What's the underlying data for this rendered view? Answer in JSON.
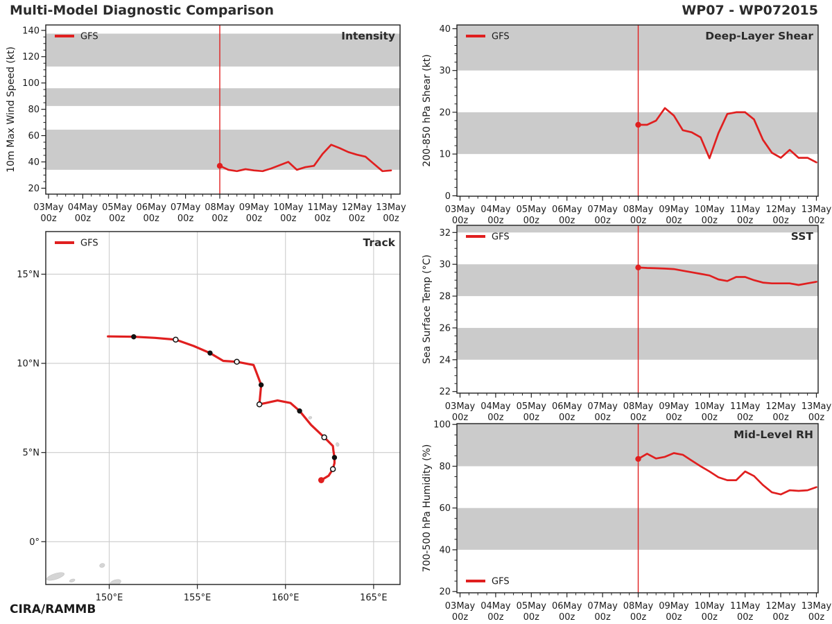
{
  "header": {
    "title": "Multi-Model Diagnostic Comparison",
    "storm_id": "WP07 - WP072015"
  },
  "footer": {
    "credit": "CIRA/RAMMB"
  },
  "colors": {
    "line": "#e01f1f",
    "band": "#cbcbcb",
    "grid": "#cccccc",
    "land": "#d5d5d5",
    "land_edge": "#c3c3c3",
    "spine": "#1f1f1f",
    "text": "#1a1a1a",
    "title": "#2b2b2b"
  },
  "time_axis": {
    "days": [
      "03May",
      "04May",
      "05May",
      "06May",
      "07May",
      "08May",
      "09May",
      "10May",
      "11May",
      "12May",
      "13May"
    ],
    "sub_label": "00z"
  },
  "chart_data": [
    {
      "key": "intensity",
      "type": "line",
      "title": "Intensity",
      "ylabel": "10m Max Wind Speed (kt)",
      "ylim": [
        15.5,
        144.1
      ],
      "yticks": [
        20,
        40,
        60,
        80,
        100,
        120,
        140
      ],
      "yminor": 5,
      "bands": [
        [
          34,
          64.5
        ],
        [
          82.5,
          96
        ],
        [
          112.5,
          137.5
        ]
      ],
      "vline_t": 120,
      "legend_pos": "top-left",
      "series": [
        {
          "name": "GFS",
          "t0": 120,
          "dt": 6,
          "values": [
            37,
            34,
            33,
            34.5,
            33.5,
            33,
            35,
            37.5,
            40,
            34,
            36,
            37,
            46,
            53,
            50.5,
            47.5,
            45.5,
            44,
            38.5,
            33,
            33.5
          ]
        }
      ]
    },
    {
      "key": "shear",
      "type": "line",
      "title": "Deep-Layer Shear",
      "ylabel": "200-850 hPa Shear (kt)",
      "ylim": [
        -0.1,
        40.9
      ],
      "yticks": [
        0,
        10,
        20,
        30,
        40
      ],
      "yminor": 2,
      "bands": [
        [
          10,
          20
        ],
        [
          30,
          40.9
        ]
      ],
      "vline_t": 120,
      "legend_pos": "top-left",
      "series": [
        {
          "name": "GFS",
          "t0": 120,
          "dt": 6,
          "values": [
            17,
            17,
            18,
            21,
            19.2,
            15.7,
            15.2,
            14,
            9,
            15,
            19.6,
            20,
            20,
            18.3,
            13.4,
            10.3,
            9.1,
            11,
            9.1,
            9.1,
            8
          ]
        }
      ]
    },
    {
      "key": "sst",
      "type": "line",
      "title": "SST",
      "ylabel": "Sea Surface Temp (°C)",
      "ylim": [
        21.9,
        32.45
      ],
      "yticks": [
        22,
        24,
        26,
        28,
        30,
        32
      ],
      "yminor": 0.5,
      "bands": [
        [
          24,
          26
        ],
        [
          28,
          30
        ],
        [
          32,
          32.45
        ]
      ],
      "vline_t": 120,
      "legend_pos": "top-left",
      "series": [
        {
          "name": "GFS",
          "t0": 120,
          "dt": 6,
          "values": [
            29.8,
            29.77,
            29.75,
            29.73,
            29.7,
            29.6,
            29.5,
            29.4,
            29.3,
            29.05,
            28.95,
            29.2,
            29.2,
            29.0,
            28.85,
            28.8,
            28.8,
            28.8,
            28.7,
            28.8,
            28.9
          ]
        }
      ]
    },
    {
      "key": "rh",
      "type": "line",
      "title": "Mid-Level RH",
      "ylabel": "700-500 hPa Humidity (%)",
      "ylim": [
        19.4,
        100.4
      ],
      "yticks": [
        20,
        40,
        60,
        80,
        100
      ],
      "yminor": 5,
      "bands": [
        [
          40,
          60
        ],
        [
          80,
          100.4
        ]
      ],
      "vline_t": 120,
      "legend_pos": "bottom-left",
      "series": [
        {
          "name": "GFS",
          "t0": 120,
          "dt": 6,
          "values": [
            83.5,
            86,
            83.7,
            84.5,
            86.3,
            85.5,
            82.7,
            80,
            77.5,
            74.7,
            73.3,
            73.3,
            77.5,
            75.3,
            71,
            67.5,
            66.5,
            68.5,
            68.2,
            68.5,
            70
          ]
        }
      ]
    },
    {
      "key": "track",
      "type": "track",
      "title": "Track",
      "lon_range": [
        146.4,
        166.5
      ],
      "lat_range": [
        -2.4,
        17.39
      ],
      "lon_ticks": [
        {
          "v": 150,
          "label": "150°E"
        },
        {
          "v": 155,
          "label": "155°E"
        },
        {
          "v": 160,
          "label": "160°E"
        },
        {
          "v": 165,
          "label": "165°E"
        }
      ],
      "lat_ticks": [
        {
          "v": 0,
          "label": "0°"
        },
        {
          "v": 5,
          "label": "5°N"
        },
        {
          "v": 10,
          "label": "10°N"
        },
        {
          "v": 15,
          "label": "15°N"
        }
      ],
      "legend_pos": "top-left",
      "series_name": "GFS",
      "points": [
        {
          "lon": 162.03,
          "lat": 3.45,
          "m": "start"
        },
        {
          "lon": 162.45,
          "lat": 3.7
        },
        {
          "lon": 162.69,
          "lat": 4.07,
          "m": "open"
        },
        {
          "lon": 162.78,
          "lat": 4.4
        },
        {
          "lon": 162.78,
          "lat": 4.72,
          "m": "fill"
        },
        {
          "lon": 162.72,
          "lat": 5.1
        },
        {
          "lon": 162.69,
          "lat": 5.37
        },
        {
          "lon": 162.2,
          "lat": 5.85,
          "m": "open"
        },
        {
          "lon": 161.45,
          "lat": 6.55
        },
        {
          "lon": 160.8,
          "lat": 7.33,
          "m": "fill"
        },
        {
          "lon": 160.28,
          "lat": 7.78
        },
        {
          "lon": 159.55,
          "lat": 7.92
        },
        {
          "lon": 158.52,
          "lat": 7.7,
          "m": "open"
        },
        {
          "lon": 158.62,
          "lat": 8.79,
          "m": "fill"
        },
        {
          "lon": 158.32,
          "lat": 9.58
        },
        {
          "lon": 158.19,
          "lat": 9.91
        },
        {
          "lon": 157.24,
          "lat": 10.09,
          "m": "open"
        },
        {
          "lon": 156.47,
          "lat": 10.14
        },
        {
          "lon": 155.72,
          "lat": 10.58,
          "m": "fill"
        },
        {
          "lon": 154.8,
          "lat": 10.97
        },
        {
          "lon": 153.77,
          "lat": 11.33,
          "m": "open"
        },
        {
          "lon": 152.6,
          "lat": 11.43
        },
        {
          "lon": 151.39,
          "lat": 11.49,
          "m": "fill"
        },
        {
          "lon": 149.93,
          "lat": 11.51
        }
      ],
      "land": [
        [
          146.95,
          -1.95,
          1.05,
          0.32
        ],
        [
          147.9,
          -2.18,
          0.32,
          0.16
        ],
        [
          149.6,
          -1.33,
          0.3,
          0.22
        ],
        [
          150.35,
          -2.3,
          0.65,
          0.32
        ],
        [
          161.4,
          6.95,
          0.2,
          0.15
        ],
        [
          162.95,
          5.45,
          0.18,
          0.22
        ]
      ]
    }
  ]
}
